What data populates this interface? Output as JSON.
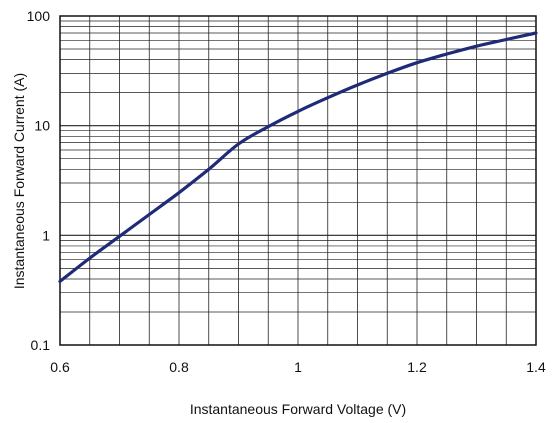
{
  "chart_data": {
    "type": "line",
    "xlabel": "Instantaneous Forward Voltage (V)",
    "ylabel": "Instantaneous Forward Current (A)",
    "xlim": [
      0.6,
      1.4
    ],
    "ylim": [
      0.1,
      100
    ],
    "y_scale": "log",
    "grid": true,
    "x_ticks": [
      "0.6",
      "0.8",
      "1",
      "1.2",
      "1.4"
    ],
    "y_ticks": [
      "0.1",
      "1",
      "10",
      "100"
    ],
    "series": [
      {
        "color": "#1f2a78",
        "x": [
          0.6,
          0.65,
          0.7,
          0.75,
          0.8,
          0.85,
          0.9,
          0.95,
          1.0,
          1.05,
          1.1,
          1.15,
          1.2,
          1.25,
          1.3,
          1.35,
          1.4
        ],
        "y": [
          0.38,
          0.62,
          0.98,
          1.55,
          2.45,
          4.0,
          6.8,
          9.8,
          13.5,
          18.0,
          23.5,
          30.0,
          37.5,
          45.0,
          53.0,
          61.0,
          70.0
        ]
      }
    ]
  }
}
